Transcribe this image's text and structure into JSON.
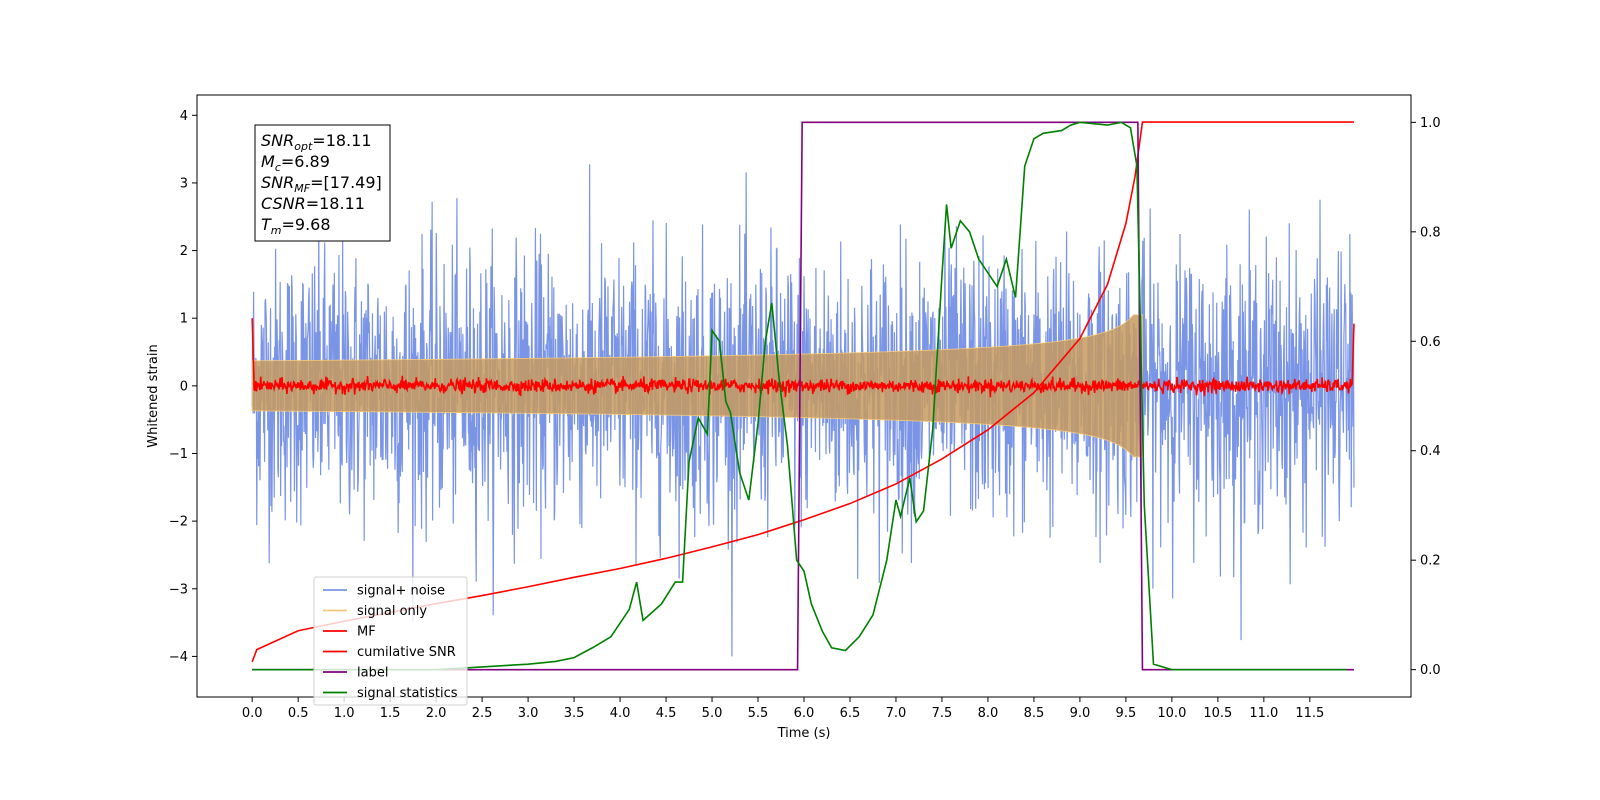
{
  "chart_data": {
    "type": "line",
    "xlabel": "Time (s)",
    "ylabel": "Whitened strain",
    "y2label": "",
    "xlim": [
      -0.6,
      12.6
    ],
    "ylim": [
      -4.6,
      4.3
    ],
    "y2lim": [
      -0.05,
      1.05
    ],
    "xticks": [
      "0.0",
      "0.5",
      "1.0",
      "1.5",
      "2.0",
      "2.5",
      "3.0",
      "3.5",
      "4.0",
      "4.5",
      "5.0",
      "5.5",
      "6.0",
      "6.5",
      "7.0",
      "7.5",
      "8.0",
      "8.5",
      "9.0",
      "9.5",
      "10.0",
      "10.5",
      "11.0",
      "11.5"
    ],
    "yticks": [
      "4",
      "3",
      "2",
      "1",
      "0",
      "−1",
      "−2",
      "−3",
      "−4"
    ],
    "y2ticks": [
      "1.0",
      "0.8",
      "0.6",
      "0.4",
      "0.2",
      "0.0"
    ],
    "grid": false,
    "legend_position": "lower-left",
    "legend": [
      {
        "label": "signal+ noise",
        "color": "#7a94e6"
      },
      {
        "label": "signal only",
        "color": "#f5c97a"
      },
      {
        "label": "MF",
        "color": "#ff0000"
      },
      {
        "label": "cumilative SNR",
        "color": "#ff0000"
      },
      {
        "label": "label",
        "color": "#800080"
      },
      {
        "label": "signal statistics",
        "color": "#008000"
      }
    ],
    "info_box": [
      {
        "sym": "SNR",
        "sub": "opt",
        "value": "=18.11"
      },
      {
        "sym": "M",
        "sub": "c",
        "value": "=6.89"
      },
      {
        "sym": "SNR",
        "sub": "MF",
        "value": "=[17.49]"
      },
      {
        "sym": "CSNR",
        "sub": "",
        "value": "=18.11"
      },
      {
        "sym": "T",
        "sub": "m",
        "value": "=9.68"
      }
    ],
    "series": [
      {
        "name": "signal+ noise",
        "axis": "left",
        "color": "#7a94e6",
        "kind": "noise",
        "t_start": 0.0,
        "t_end": 11.98,
        "approx_std": 1.0,
        "max": 3.9,
        "min": -4.0
      },
      {
        "name": "signal only",
        "axis": "left",
        "color": "#f5c97a",
        "kind": "chirp",
        "t_start": 0.0,
        "t_merge": 9.68,
        "peak_amplitude": 1.05
      },
      {
        "name": "MF",
        "axis": "left",
        "color": "#ff0000",
        "kind": "mf",
        "baseline_noise": 0.05,
        "points": [
          [
            0.0,
            1.0
          ],
          [
            0.02,
            0.05
          ],
          [
            11.96,
            0.05
          ],
          [
            11.98,
            0.92
          ]
        ]
      },
      {
        "name": "cumilative SNR",
        "axis": "left",
        "color": "#ff0000",
        "points": [
          [
            0.0,
            -4.08
          ],
          [
            0.05,
            -3.9
          ],
          [
            0.5,
            -3.62
          ],
          [
            1.0,
            -3.48
          ],
          [
            1.5,
            -3.35
          ],
          [
            2.0,
            -3.22
          ],
          [
            2.5,
            -3.1
          ],
          [
            3.0,
            -2.97
          ],
          [
            3.5,
            -2.83
          ],
          [
            4.0,
            -2.7
          ],
          [
            4.5,
            -2.55
          ],
          [
            5.0,
            -2.38
          ],
          [
            5.5,
            -2.2
          ],
          [
            6.0,
            -1.98
          ],
          [
            6.5,
            -1.74
          ],
          [
            7.0,
            -1.45
          ],
          [
            7.5,
            -1.08
          ],
          [
            8.0,
            -0.65
          ],
          [
            8.5,
            -0.1
          ],
          [
            9.0,
            0.7
          ],
          [
            9.3,
            1.5
          ],
          [
            9.5,
            2.4
          ],
          [
            9.6,
            3.1
          ],
          [
            9.68,
            3.9
          ],
          [
            11.98,
            3.9
          ]
        ]
      },
      {
        "name": "label",
        "axis": "right",
        "color": "#800080",
        "points": [
          [
            0.0,
            0.0
          ],
          [
            5.93,
            0.0
          ],
          [
            5.98,
            1.0
          ],
          [
            9.63,
            1.0
          ],
          [
            9.68,
            0.0
          ],
          [
            11.98,
            0.0
          ]
        ]
      },
      {
        "name": "signal statistics",
        "axis": "right",
        "color": "#008000",
        "points": [
          [
            0.0,
            0.0
          ],
          [
            2.0,
            0.0
          ],
          [
            2.5,
            0.005
          ],
          [
            3.0,
            0.01
          ],
          [
            3.3,
            0.015
          ],
          [
            3.5,
            0.022
          ],
          [
            3.7,
            0.04
          ],
          [
            3.9,
            0.06
          ],
          [
            4.1,
            0.11
          ],
          [
            4.18,
            0.16
          ],
          [
            4.25,
            0.09
          ],
          [
            4.45,
            0.12
          ],
          [
            4.6,
            0.16
          ],
          [
            4.68,
            0.16
          ],
          [
            4.75,
            0.38
          ],
          [
            4.85,
            0.46
          ],
          [
            4.95,
            0.43
          ],
          [
            5.0,
            0.62
          ],
          [
            5.08,
            0.6
          ],
          [
            5.15,
            0.49
          ],
          [
            5.2,
            0.47
          ],
          [
            5.3,
            0.36
          ],
          [
            5.4,
            0.31
          ],
          [
            5.5,
            0.45
          ],
          [
            5.58,
            0.6
          ],
          [
            5.65,
            0.67
          ],
          [
            5.73,
            0.53
          ],
          [
            5.82,
            0.41
          ],
          [
            5.92,
            0.2
          ],
          [
            6.0,
            0.18
          ],
          [
            6.08,
            0.12
          ],
          [
            6.2,
            0.07
          ],
          [
            6.3,
            0.04
          ],
          [
            6.45,
            0.035
          ],
          [
            6.6,
            0.06
          ],
          [
            6.75,
            0.1
          ],
          [
            6.9,
            0.2
          ],
          [
            7.0,
            0.31
          ],
          [
            7.05,
            0.28
          ],
          [
            7.15,
            0.35
          ],
          [
            7.22,
            0.27
          ],
          [
            7.3,
            0.29
          ],
          [
            7.4,
            0.44
          ],
          [
            7.5,
            0.72
          ],
          [
            7.55,
            0.85
          ],
          [
            7.6,
            0.77
          ],
          [
            7.7,
            0.82
          ],
          [
            7.8,
            0.8
          ],
          [
            7.9,
            0.75
          ],
          [
            8.1,
            0.7
          ],
          [
            8.2,
            0.75
          ],
          [
            8.3,
            0.68
          ],
          [
            8.4,
            0.92
          ],
          [
            8.5,
            0.97
          ],
          [
            8.6,
            0.98
          ],
          [
            8.8,
            0.985
          ],
          [
            8.9,
            0.995
          ],
          [
            9.0,
            1.0
          ],
          [
            9.3,
            0.995
          ],
          [
            9.45,
            1.0
          ],
          [
            9.55,
            0.99
          ],
          [
            9.62,
            0.92
          ],
          [
            9.7,
            0.3
          ],
          [
            9.8,
            0.01
          ],
          [
            10.0,
            0.0
          ],
          [
            11.9,
            0.0
          ]
        ]
      }
    ]
  }
}
